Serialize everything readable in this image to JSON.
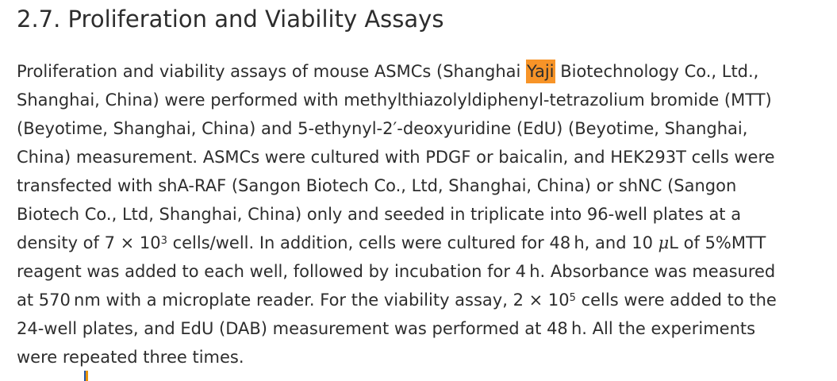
{
  "section": {
    "heading": "2.7. Proliferation and Viability Assays"
  },
  "highlight": {
    "color": "#f79428"
  },
  "colors": {
    "text": "#2d2d2d",
    "background": "#ffffff"
  },
  "clipped_fragment": {
    "left_color": "#2456a8",
    "right_color": "#e8940a"
  },
  "paragraph": {
    "lines": [
      [
        {
          "t": "Proliferation and viability assays of mouse ASMCs (Shanghai "
        },
        {
          "t": "Yaji",
          "hl": true
        },
        {
          "t": " Biotechnology Co., Ltd.,"
        }
      ],
      [
        {
          "t": "Shanghai, China) were performed with methylthiazolyldiphenyl-tetrazolium bromide (MTT)"
        }
      ],
      [
        {
          "t": "(Beyotime, Shanghai, China) and 5-ethynyl-2′-deoxyuridine (EdU) (Beyotime, Shanghai,"
        }
      ],
      [
        {
          "t": "China) measurement. ASMCs were cultured with PDGF or baicalin, and HEK293T cells were"
        }
      ],
      [
        {
          "t": "transfected with shA-RAF (Sangon Biotech Co., Ltd, Shanghai, China) or shNC (Sangon"
        }
      ],
      [
        {
          "t": "Biotech Co., Ltd, Shanghai, China) only and seeded in triplicate into 96-well plates at a"
        }
      ],
      [
        {
          "t": "density of 7 × 10"
        },
        {
          "t": "3",
          "sup": true
        },
        {
          "t": " cells/well. In addition, cells were cultured for 48 h, and 10 "
        },
        {
          "t": "μ",
          "it": true
        },
        {
          "t": "L of 5%MTT"
        }
      ],
      [
        {
          "t": "reagent was added to each well, followed by incubation for 4 h. Absorbance was measured"
        }
      ],
      [
        {
          "t": "at 570 nm with a microplate reader. For the viability assay, 2 × 10"
        },
        {
          "t": "5",
          "sup": true
        },
        {
          "t": " cells were added to the"
        }
      ],
      [
        {
          "t": "24-well plates, and EdU (DAB) measurement was performed at 48 h. All the experiments"
        }
      ],
      [
        {
          "t": "were repeated three times."
        }
      ]
    ]
  }
}
